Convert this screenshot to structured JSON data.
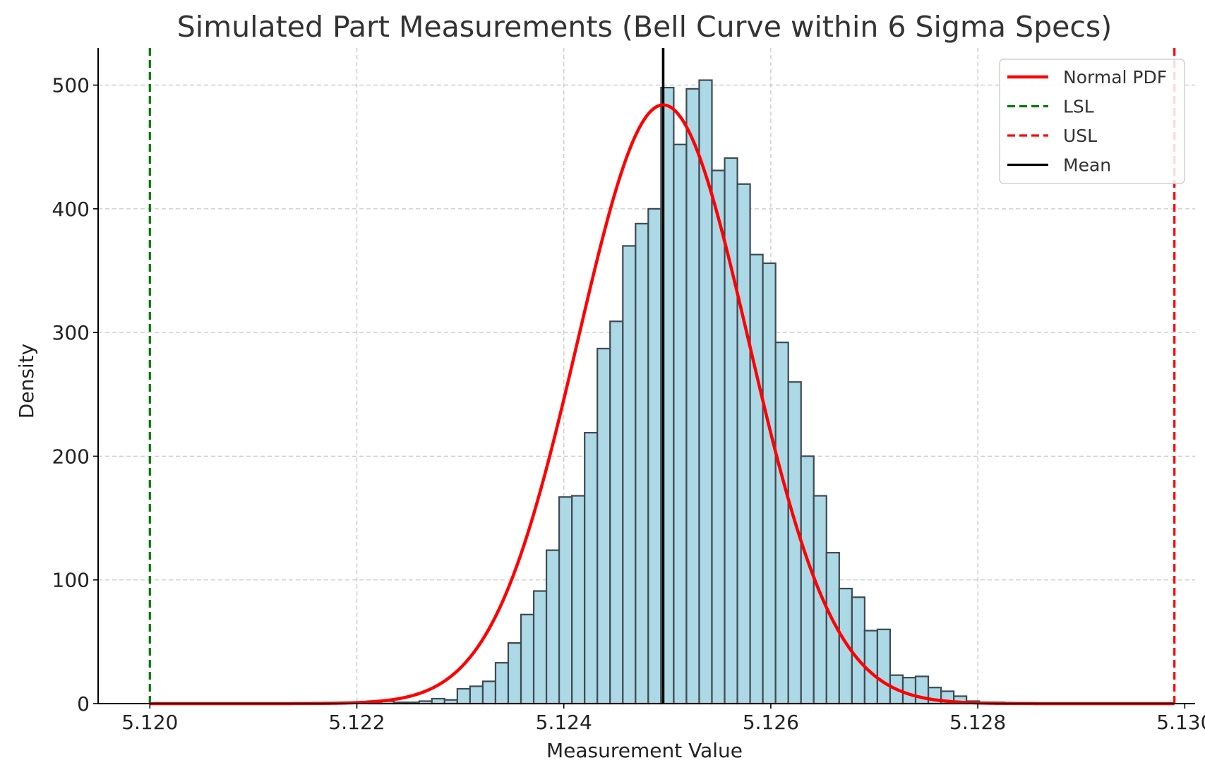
{
  "chart_data": {
    "type": "bar",
    "title": "Simulated Part Measurements (Bell Curve within 6 Sigma Specs)",
    "xlabel": "Measurement Value",
    "ylabel": "Density",
    "xlim": [
      5.1195,
      5.1301
    ],
    "ylim": [
      0,
      530
    ],
    "x_ticks": [
      "5.120",
      "5.122",
      "5.124",
      "5.126",
      "5.128",
      "5.130"
    ],
    "x_tick_values": [
      5.12,
      5.122,
      5.124,
      5.126,
      5.128,
      5.13
    ],
    "y_ticks": [
      "0",
      "100",
      "200",
      "300",
      "400",
      "500"
    ],
    "y_tick_values": [
      0,
      100,
      200,
      300,
      400,
      500
    ],
    "grid": true,
    "legend_position": "top-right",
    "histogram": {
      "start": 5.12211,
      "bin_width": 0.000123,
      "values": [
        2,
        2,
        1,
        1,
        2,
        4,
        3,
        12,
        14,
        18,
        33,
        49,
        72,
        91,
        124,
        167,
        168,
        219,
        287,
        309,
        370,
        388,
        400,
        498,
        452,
        497,
        504,
        431,
        441,
        420,
        363,
        356,
        292,
        260,
        200,
        168,
        122,
        93,
        86,
        59,
        60,
        23,
        21,
        22,
        13,
        10,
        6,
        2,
        1,
        1
      ]
    },
    "series": [
      {
        "name": "Normal PDF",
        "kind": "curve",
        "color": "#ff0000",
        "mean": 5.12496,
        "std": 0.000825,
        "peak": 484
      },
      {
        "name": "LSL",
        "kind": "vline",
        "color": "#007a00",
        "x": 5.12
      },
      {
        "name": "USL",
        "kind": "vline",
        "color": "#ff0000",
        "x": 5.1299
      },
      {
        "name": "Mean",
        "kind": "vline",
        "color": "#000000",
        "x": 5.12496
      }
    ],
    "colors": {
      "bar_fill": "#add8e6",
      "bar_edge": "#3d4a52"
    }
  }
}
